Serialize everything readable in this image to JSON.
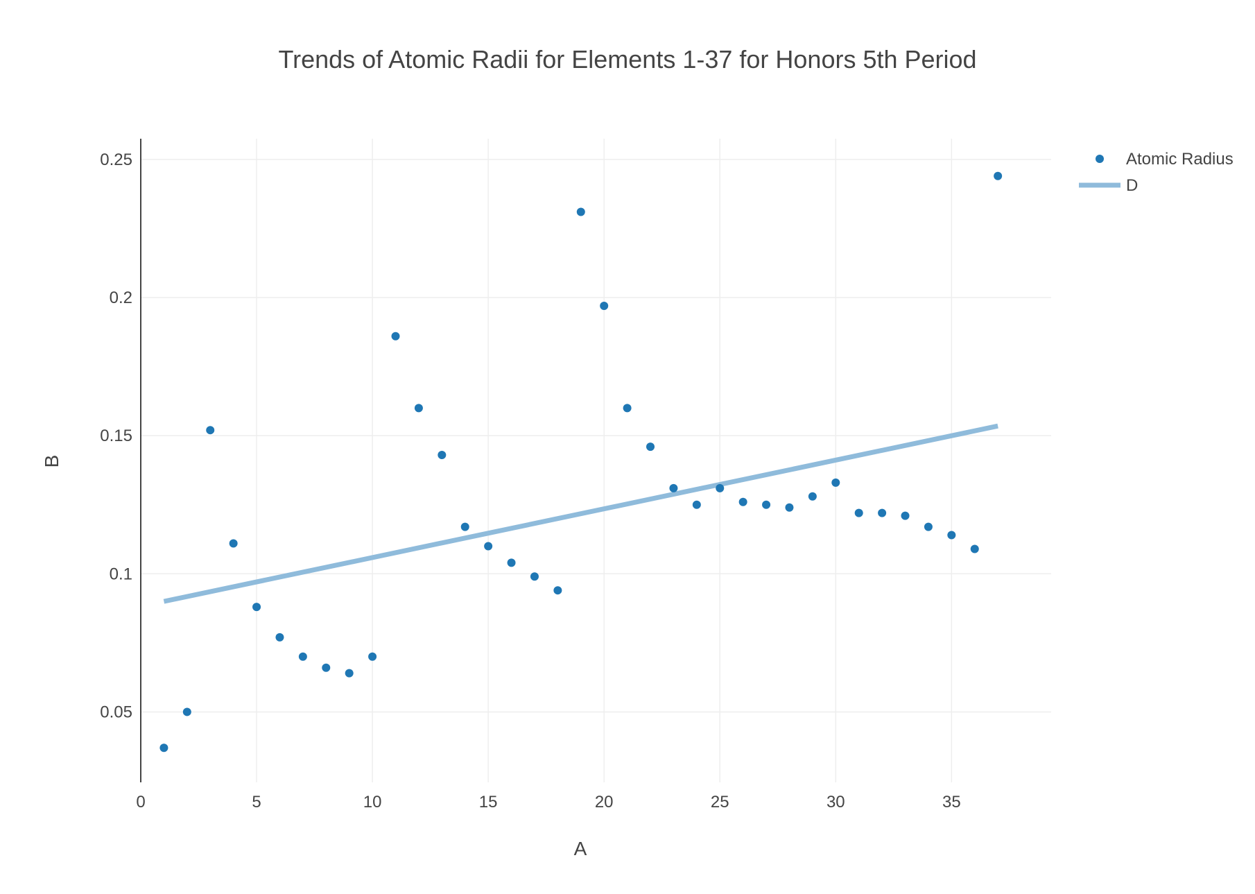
{
  "chart_data": {
    "type": "scatter",
    "title": "Trends of Atomic Radii for Elements 1-37 for Honors 5th Period",
    "xlabel": "A",
    "ylabel": "B",
    "xlim": [
      0,
      39.3
    ],
    "ylim": [
      0.0245,
      0.2575
    ],
    "x_ticks": [
      0,
      5,
      10,
      15,
      20,
      25,
      30,
      35
    ],
    "x_tick_labels": [
      "0",
      "5",
      "10",
      "15",
      "20",
      "25",
      "30",
      "35"
    ],
    "y_ticks": [
      0.05,
      0.1,
      0.15,
      0.2,
      0.25
    ],
    "y_tick_labels": [
      "0.05",
      "0.1",
      "0.15",
      "0.2",
      "0.25"
    ],
    "grid": true,
    "legend_position": "top-right",
    "series": [
      {
        "name": "Atomic Radius",
        "mode": "markers",
        "color": "#1f77b4",
        "x": [
          1,
          2,
          3,
          4,
          5,
          6,
          7,
          8,
          9,
          10,
          11,
          12,
          13,
          14,
          15,
          16,
          17,
          18,
          19,
          20,
          21,
          22,
          23,
          24,
          25,
          26,
          27,
          28,
          29,
          30,
          31,
          32,
          33,
          34,
          35,
          36,
          37
        ],
        "y": [
          0.037,
          0.05,
          0.152,
          0.111,
          0.088,
          0.077,
          0.07,
          0.066,
          0.064,
          0.07,
          0.186,
          0.16,
          0.143,
          0.117,
          0.11,
          0.104,
          0.099,
          0.094,
          0.231,
          0.197,
          0.16,
          0.146,
          0.131,
          0.125,
          0.131,
          0.126,
          0.125,
          0.124,
          0.128,
          0.133,
          0.122,
          0.122,
          0.121,
          0.117,
          0.114,
          0.109,
          0.244
        ]
      },
      {
        "name": "D",
        "mode": "lines",
        "color": "#8fbbdb",
        "x": [
          1,
          37
        ],
        "y": [
          0.09,
          0.1535
        ]
      }
    ]
  }
}
